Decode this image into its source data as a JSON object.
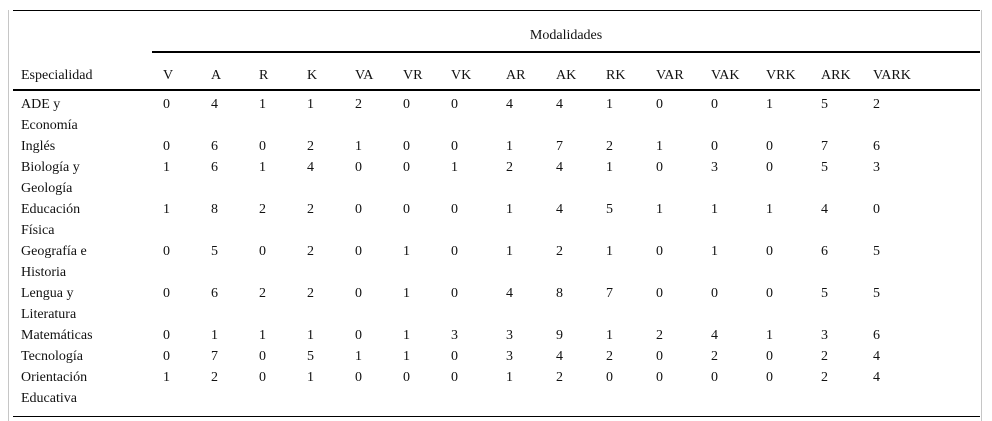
{
  "table": {
    "group_header": "Modalidades",
    "row_header": "Especialidad",
    "columns": [
      "V",
      "A",
      "R",
      "K",
      "VA",
      "VR",
      "VK",
      "AR",
      "AK",
      "RK",
      "VAR",
      "VAK",
      "VRK",
      "ARK",
      "VARK"
    ],
    "rows": [
      {
        "label": "ADE y\nEconomía",
        "values": [
          0,
          4,
          1,
          1,
          2,
          0,
          0,
          4,
          4,
          1,
          0,
          0,
          1,
          5,
          2
        ]
      },
      {
        "label": "Inglés",
        "values": [
          0,
          6,
          0,
          2,
          1,
          0,
          0,
          1,
          7,
          2,
          1,
          0,
          0,
          7,
          6
        ]
      },
      {
        "label": "Biología y\nGeología",
        "values": [
          1,
          6,
          1,
          4,
          0,
          0,
          1,
          2,
          4,
          1,
          0,
          3,
          0,
          5,
          3
        ]
      },
      {
        "label": "Educación\nFísica",
        "values": [
          1,
          8,
          2,
          2,
          0,
          0,
          0,
          1,
          4,
          5,
          1,
          1,
          1,
          4,
          0
        ]
      },
      {
        "label": "Geografía e\nHistoria",
        "values": [
          0,
          5,
          0,
          2,
          0,
          1,
          0,
          1,
          2,
          1,
          0,
          1,
          0,
          6,
          5
        ]
      },
      {
        "label": "Lengua y\nLiteratura",
        "values": [
          0,
          6,
          2,
          2,
          0,
          1,
          0,
          4,
          8,
          7,
          0,
          0,
          0,
          5,
          5
        ]
      },
      {
        "label": "Matemáticas",
        "values": [
          0,
          1,
          1,
          1,
          0,
          1,
          3,
          3,
          9,
          1,
          2,
          4,
          1,
          3,
          6
        ]
      },
      {
        "label": "Tecnología",
        "values": [
          0,
          7,
          0,
          5,
          1,
          1,
          0,
          3,
          4,
          2,
          0,
          2,
          0,
          2,
          4
        ]
      },
      {
        "label": "Orientación\nEducativa",
        "values": [
          1,
          2,
          0,
          1,
          0,
          0,
          0,
          1,
          2,
          0,
          0,
          0,
          0,
          2,
          4
        ]
      }
    ]
  },
  "colors": {
    "text": "#111111",
    "rule": "#000000",
    "frame_edge": "#c6c6c6",
    "background": "#ffffff"
  }
}
